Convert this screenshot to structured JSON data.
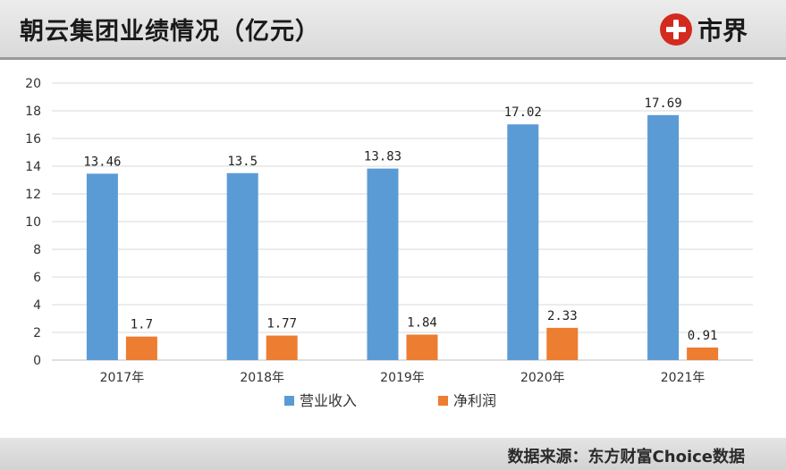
{
  "header": {
    "title": "朝云集团业绩情况（亿元）",
    "logo_text": "市界"
  },
  "footer": {
    "source": "数据来源：东方财富Choice数据"
  },
  "colors": {
    "revenue": "#5b9bd5",
    "profit": "#ed7d31"
  },
  "chart_data": {
    "type": "bar",
    "title": "朝云集团业绩情况（亿元）",
    "categories": [
      "2017年",
      "2018年",
      "2019年",
      "2020年",
      "2021年"
    ],
    "series": [
      {
        "name": "营业收入",
        "values": [
          13.46,
          13.5,
          13.83,
          17.02,
          17.69
        ],
        "labels": [
          "13.46",
          "13.5",
          "13.83",
          "17.02",
          "17.69"
        ]
      },
      {
        "name": "净利润",
        "values": [
          1.7,
          1.77,
          1.84,
          2.33,
          0.91
        ],
        "labels": [
          "1.7",
          "1.77",
          "1.84",
          "2.33",
          "0.91"
        ]
      }
    ],
    "ylim": [
      0,
      20
    ],
    "yticks": [
      "0",
      "2",
      "4",
      "6",
      "8",
      "10",
      "12",
      "14",
      "16",
      "18",
      "20"
    ],
    "grid": true,
    "legend": "bottom-center",
    "xlabel": "",
    "ylabel": ""
  }
}
